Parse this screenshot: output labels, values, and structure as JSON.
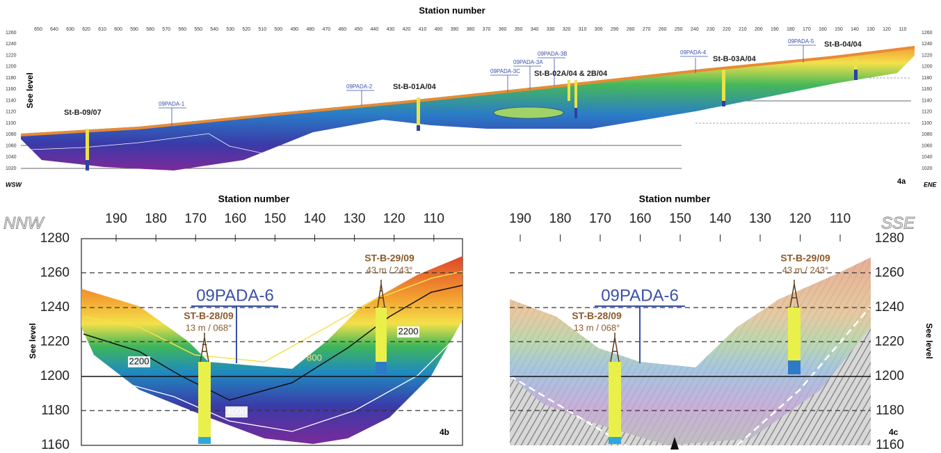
{
  "panel_4a": {
    "title": "Station number",
    "x_ticks": [
      650,
      640,
      630,
      620,
      610,
      600,
      590,
      580,
      570,
      560,
      550,
      540,
      530,
      520,
      510,
      500,
      490,
      480,
      470,
      460,
      450,
      440,
      430,
      420,
      410,
      400,
      390,
      380,
      370,
      360,
      350,
      340,
      330,
      320,
      310,
      300,
      290,
      280,
      270,
      260,
      250,
      240,
      230,
      220,
      210,
      200,
      190,
      180,
      170,
      160,
      150,
      140,
      130,
      120,
      110
    ],
    "y_ticks": [
      1260,
      1240,
      1220,
      1200,
      1180,
      1160,
      1140,
      1120,
      1100,
      1080,
      1060,
      1040,
      1020
    ],
    "y_axis_label": "See level",
    "label_left": "WSW",
    "label_right": "ENE",
    "panel_label": "4a",
    "boreholes": [
      "St-B-09/07",
      "St-B-01A/04",
      "St-B-02A/04 & 2B/04",
      "St-B-03A/04",
      "St-B-04/04"
    ],
    "profiles": [
      "09PADA-1",
      "09PADA-2",
      "09PADA-3C",
      "09PADA-3A",
      "09PADA-3B",
      "09PADA-4",
      "09PADA-5"
    ]
  },
  "panel_4b": {
    "title": "Station number",
    "x_ticks": [
      190,
      180,
      170,
      160,
      150,
      140,
      130,
      120,
      110
    ],
    "y_ticks": [
      1280,
      1260,
      1240,
      1220,
      1200,
      1180,
      1160
    ],
    "y_axis_label": "See level",
    "direction": "NNW",
    "profile": "09PADA-6",
    "boreholes": [
      {
        "name": "ST-B-28/09",
        "info": "13 m / 068°"
      },
      {
        "name": "ST-B-29/09",
        "info": "43 m / 243°"
      }
    ],
    "contours": [
      "2200",
      "2200",
      "4000",
      "800"
    ],
    "panel_label": "4b"
  },
  "panel_4c": {
    "title": "Station number",
    "x_ticks": [
      190,
      180,
      170,
      160,
      150,
      140,
      130,
      120,
      110
    ],
    "y_ticks": [
      1280,
      1260,
      1240,
      1220,
      1200,
      1180,
      1160
    ],
    "y_axis_label": "See level",
    "direction": "SSE",
    "profile": "09PADA-6",
    "boreholes": [
      {
        "name": "ST-B-28/09",
        "info": "13 m / 068°"
      },
      {
        "name": "ST-B-29/09",
        "info": "43 m / 243°"
      }
    ],
    "panel_label": "4c"
  }
}
